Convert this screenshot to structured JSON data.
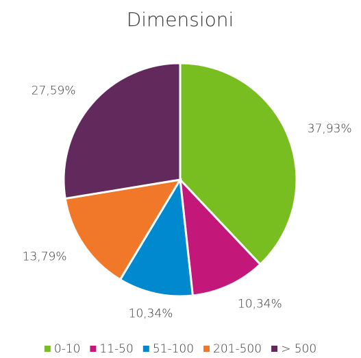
{
  "chart_data": {
    "type": "pie",
    "title": "Dimensioni",
    "categories": [
      "0-10",
      "11-50",
      "51-100",
      "201-500",
      "> 500"
    ],
    "values": [
      37.93,
      10.34,
      10.34,
      13.79,
      27.59
    ],
    "value_labels": [
      "37,93%",
      "10,34%",
      "10,34%",
      "13,79%",
      "27,59%"
    ],
    "colors": [
      "#78be20",
      "#c4177a",
      "#0089cf",
      "#f07828",
      "#622a5c"
    ],
    "legend": "bottom"
  }
}
